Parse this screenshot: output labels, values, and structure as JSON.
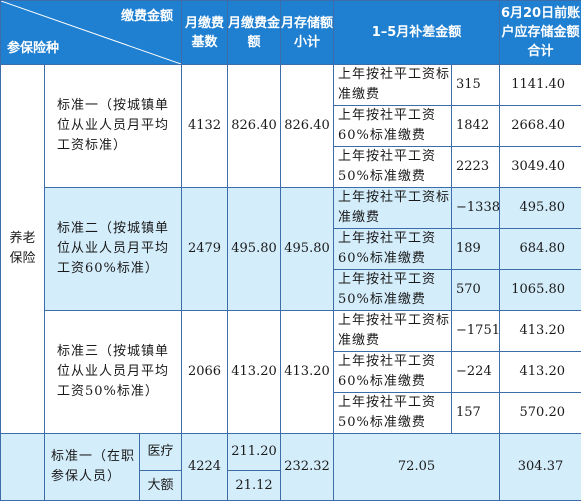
{
  "header": {
    "diag_top": "缴费金额",
    "diag_bottom": "参保险种",
    "col_base": "月缴费基数",
    "col_amount": "月缴费金额",
    "col_subtotal": "月存储额小计",
    "col_supp": "1–5月补差金额",
    "col_total": "6月20日前账户应存储金额合计"
  },
  "pension": {
    "category": "养老保险",
    "groups": [
      {
        "standard": "标准一（按城镇单位从业人员月平均工资标准）",
        "base": "4132",
        "amount": "826.40",
        "subtotal": "826.40",
        "rows": [
          {
            "label": "上年按社平工资标准缴费",
            "diff": "315",
            "total": "1141.40"
          },
          {
            "label": "上年按社平工资60%标准缴费",
            "diff": "1842",
            "total": "2668.40"
          },
          {
            "label": "上年按社平工资50%标准缴费",
            "diff": "2223",
            "total": "3049.40"
          }
        ]
      },
      {
        "standard": "标准二（按城镇单位从业人员月平均工资60%标准）",
        "base": "2479",
        "amount": "495.80",
        "subtotal": "495.80",
        "rows": [
          {
            "label": "上年按社平工资标准缴费",
            "diff": "−1338",
            "total": "495.80"
          },
          {
            "label": "上年按社平工资60%标准缴费",
            "diff": "189",
            "total": "684.80"
          },
          {
            "label": "上年按社平工资50%标准缴费",
            "diff": "570",
            "total": "1065.80"
          }
        ]
      },
      {
        "standard": "标准三（按城镇单位从业人员月平均工资50%标准）",
        "base": "2066",
        "amount": "413.20",
        "subtotal": "413.20",
        "rows": [
          {
            "label": "上年按社平工资标准缴费",
            "diff": "−1751",
            "total": "413.20"
          },
          {
            "label": "上年按社平工资60%标准缴费",
            "diff": "−224",
            "total": "413.20"
          },
          {
            "label": "上年按社平工资50%标准缴费",
            "diff": "157",
            "total": "570.20"
          }
        ]
      }
    ]
  },
  "medical": {
    "standard": "标准一（在职参保人员）",
    "sub1": "医疗",
    "sub2": "大额",
    "base": "4224",
    "amount1": "211.20",
    "amount2": "21.12",
    "subtotal": "232.32",
    "supp": "72.05",
    "total": "304.37"
  }
}
